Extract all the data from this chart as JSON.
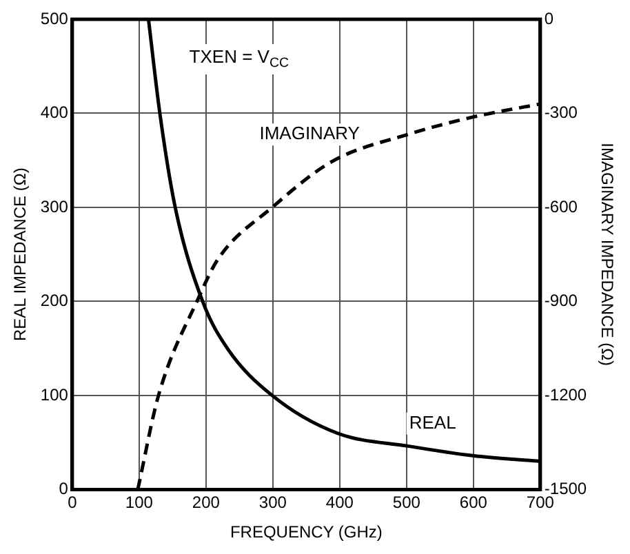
{
  "chart_data": {
    "type": "line",
    "xlabel": "FREQUENCY (GHz)",
    "ylabel": "REAL IMPEDANCE (Ω)",
    "y2label": "IMAGINARY IMPEDANCE (Ω)",
    "annotations": [
      "TXEN = V$_{CC}$"
    ],
    "series": [
      {
        "name": "REAL",
        "color": "#000000",
        "line_style": "solid",
        "x": [
          114,
          131,
          154,
          195,
          232,
          299,
          396,
          504,
          599,
          700
        ],
        "values": [
          500,
          400,
          300,
          200,
          150,
          100,
          60,
          46,
          36,
          30
        ]
      },
      {
        "name": "IMAGINARY",
        "color": "#000000",
        "line_style": "dashed",
        "axis": "y2",
        "x": [
          98,
          129,
          189,
          218,
          299,
          389,
          504,
          599,
          700
        ],
        "values": [
          -1500,
          -1200,
          -888,
          -765,
          -600,
          -453,
          -366,
          -312,
          -270
        ]
      }
    ],
    "xlim": [
      0,
      700
    ],
    "xticks": [
      0,
      100,
      200,
      300,
      400,
      500,
      600,
      700
    ],
    "ylim": [
      0,
      500
    ],
    "yticks": [
      0,
      100,
      200,
      300,
      400,
      500
    ],
    "y2lim": [
      -1500,
      0
    ],
    "y2ticks": [
      -1500,
      -1200,
      -900,
      -600,
      -300,
      0
    ],
    "grid": true,
    "legend": false,
    "marker": "none"
  }
}
